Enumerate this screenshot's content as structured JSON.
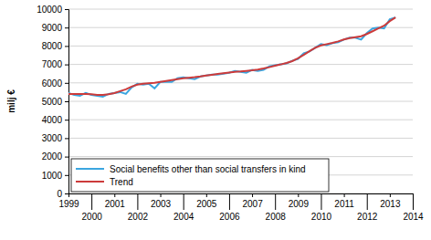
{
  "chart_data": {
    "type": "line",
    "y_label": "milj €",
    "x": [
      1999,
      1999.25,
      1999.5,
      1999.75,
      2000,
      2000.25,
      2000.5,
      2000.75,
      2001,
      2001.25,
      2001.5,
      2001.75,
      2002,
      2002.25,
      2002.5,
      2002.75,
      2003,
      2003.25,
      2003.5,
      2003.75,
      2004,
      2004.25,
      2004.5,
      2004.75,
      2005,
      2005.25,
      2005.5,
      2005.75,
      2006,
      2006.25,
      2006.5,
      2006.75,
      2007,
      2007.25,
      2007.5,
      2007.75,
      2008,
      2008.25,
      2008.5,
      2008.75,
      2009,
      2009.25,
      2009.5,
      2009.75,
      2010,
      2010.25,
      2010.5,
      2010.75,
      2011,
      2011.25,
      2011.5,
      2011.75,
      2012,
      2012.25,
      2012.5,
      2012.75,
      2013,
      2013.25
    ],
    "series": [
      {
        "name": "Social benefits other than social transfers in kind",
        "color": "#3ba6e0",
        "values": [
          5450,
          5350,
          5300,
          5450,
          5350,
          5300,
          5250,
          5400,
          5450,
          5500,
          5400,
          5750,
          5950,
          5900,
          5950,
          5700,
          6050,
          6050,
          6050,
          6250,
          6300,
          6250,
          6200,
          6350,
          6400,
          6450,
          6450,
          6500,
          6550,
          6650,
          6600,
          6550,
          6700,
          6650,
          6700,
          6900,
          6950,
          7000,
          7050,
          7200,
          7300,
          7600,
          7700,
          7900,
          8100,
          8050,
          8150,
          8200,
          8350,
          8450,
          8450,
          8350,
          8700,
          8950,
          9000,
          8950,
          9450,
          9550
        ]
      },
      {
        "name": "Trend",
        "color": "#cc3b3b",
        "values": [
          5400,
          5400,
          5400,
          5400,
          5380,
          5350,
          5350,
          5380,
          5450,
          5550,
          5650,
          5800,
          5900,
          5950,
          5980,
          6000,
          6050,
          6100,
          6150,
          6200,
          6250,
          6280,
          6310,
          6350,
          6400,
          6440,
          6480,
          6520,
          6560,
          6600,
          6620,
          6650,
          6680,
          6720,
          6780,
          6850,
          6930,
          7000,
          7080,
          7180,
          7330,
          7520,
          7720,
          7900,
          8030,
          8100,
          8170,
          8250,
          8350,
          8430,
          8480,
          8530,
          8650,
          8800,
          8950,
          9100,
          9350,
          9550
        ]
      }
    ],
    "xlim": [
      1999,
      2014
    ],
    "xticks": [
      1999,
      2000,
      2001,
      2002,
      2003,
      2004,
      2005,
      2006,
      2007,
      2008,
      2009,
      2010,
      2011,
      2012,
      2013,
      2014
    ],
    "ylim": [
      0,
      10000
    ],
    "yticks": [
      0,
      1000,
      2000,
      3000,
      4000,
      5000,
      6000,
      7000,
      8000,
      9000,
      10000
    ],
    "grid": true,
    "legend": "lower left"
  }
}
